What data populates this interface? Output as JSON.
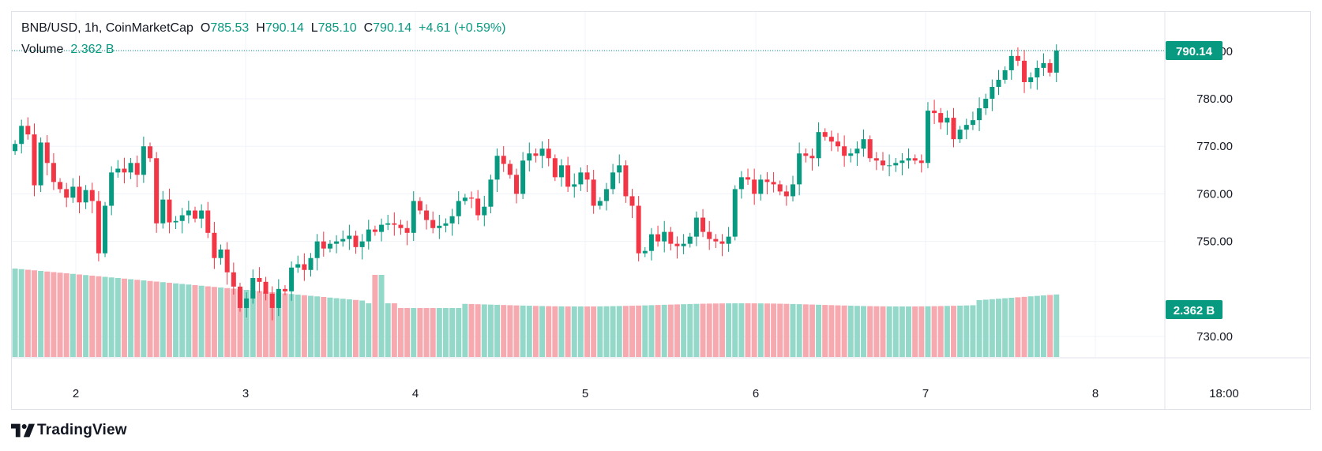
{
  "legend": {
    "symbol": "BNB/USD, 1h, CoinMarketCap",
    "open_label": "O",
    "open_value": "785.53",
    "high_label": "H",
    "high_value": "790.14",
    "low_label": "L",
    "low_value": "785.10",
    "close_label": "C",
    "close_value": "790.14",
    "change": "+4.61 (+0.59%)",
    "volume_label": "Volume",
    "volume_value": "2.362 B"
  },
  "price_badge": "790.14",
  "volume_badge": "2.362 B",
  "brand": {
    "name": "TradingView"
  },
  "colors": {
    "up": "#089981",
    "down": "#f23645",
    "up_volume": "#94d8ca",
    "down_volume": "#f7a9b0",
    "grid": "#f0f3fa",
    "axis_text": "#131722"
  },
  "chart_data": {
    "type": "candlestick",
    "interval": "1h",
    "price_axis": {
      "ticks": [
        "790.00",
        "780.00",
        "770.00",
        "760.00",
        "750.00",
        "730.00"
      ]
    },
    "time_axis": {
      "ticks": [
        "2",
        "3",
        "4",
        "5",
        "6",
        "7",
        "8",
        "18:00"
      ]
    },
    "last_price": 790.14,
    "last_volume": "2.362 B",
    "close": [
      770.5,
      774.3,
      772.5,
      761.8,
      770.8,
      766.5,
      762.5,
      761.0,
      759.2,
      761.5,
      758.2,
      760.8,
      758.5,
      747.5,
      757.5,
      764.5,
      765.3,
      764.5,
      766.5,
      764.0,
      770.0,
      767.5,
      753.8,
      758.8,
      754.0,
      754.3,
      755.5,
      756.5,
      754.8,
      756.5,
      751.8,
      746.5,
      748.3,
      743.5,
      740.5,
      736.0,
      738.0,
      742.3,
      741.5,
      739.0,
      736.0,
      740.0,
      739.5,
      744.5,
      745.2,
      744.0,
      746.5,
      750.0,
      748.5,
      749.5,
      750.0,
      750.5,
      751.2,
      748.8,
      750.0,
      752.5,
      752.0,
      753.5,
      753.8,
      753.5,
      752.8,
      751.8,
      758.5,
      756.5,
      754.5,
      752.8,
      753.3,
      753.8,
      755.3,
      758.5,
      759.2,
      759.0,
      755.5,
      757.3,
      763.0,
      768.0,
      766.3,
      764.0,
      760.0,
      767.0,
      768.5,
      768.0,
      769.5,
      767.5,
      763.5,
      766.0,
      761.5,
      762.0,
      764.5,
      763.0,
      757.5,
      758.5,
      761.0,
      764.5,
      766.0,
      759.5,
      757.5,
      747.5,
      748.0,
      751.5,
      750.0,
      752.0,
      749.5,
      749.0,
      749.5,
      751.0,
      755.0,
      752.0,
      750.5,
      750.0,
      749.5,
      751.0,
      761.0,
      763.5,
      763.0,
      760.0,
      763.0,
      762.5,
      762.0,
      760.5,
      759.5,
      762.0,
      768.5,
      768.0,
      767.5,
      773.0,
      772.0,
      771.0,
      770.0,
      768.0,
      768.5,
      769.5,
      771.5,
      767.5,
      767.0,
      766.0,
      766.0,
      766.5,
      767.0,
      767.5,
      767.0,
      766.5,
      777.5,
      777.0,
      775.0,
      776.0,
      771.5,
      773.5,
      774.5,
      775.5,
      778.0,
      780.0,
      782.5,
      784.0,
      786.0,
      789.0,
      788.0,
      783.5,
      784.5,
      786.5,
      787.5,
      785.5,
      790.14
    ],
    "volume_trend": "declining from left to right until the 4th, then flat-to-rising; last bar 2.362 B"
  }
}
